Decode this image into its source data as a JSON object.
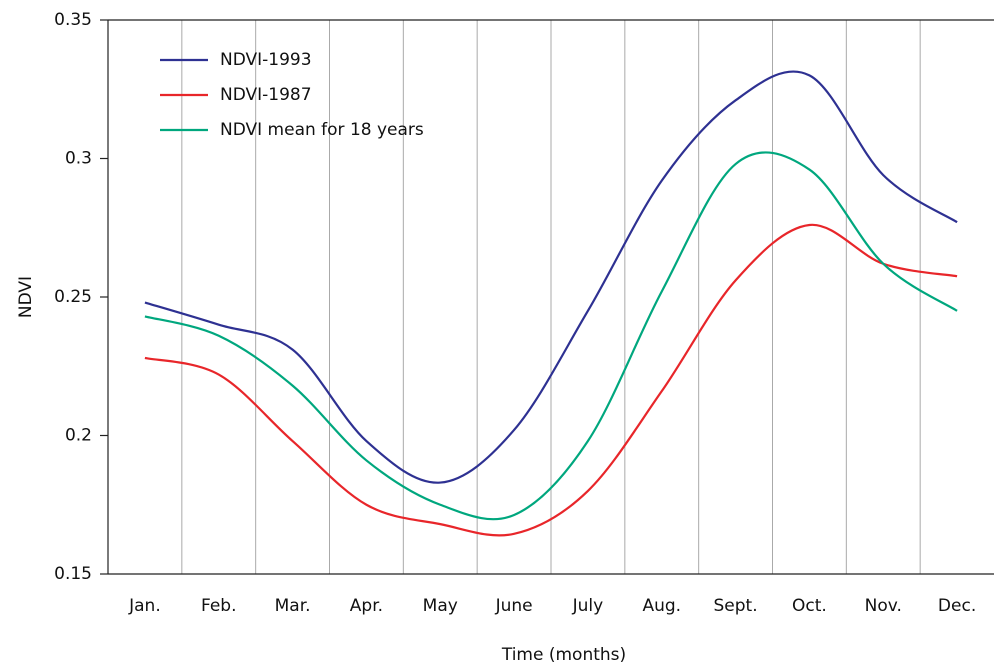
{
  "chart_data": {
    "type": "line",
    "x_label": "Time (months)",
    "y_label": "NDVI",
    "categories": [
      "Jan.",
      "Feb.",
      "Mar.",
      "Apr.",
      "May",
      "June",
      "July",
      "Aug.",
      "Sept.",
      "Oct.",
      "Nov.",
      "Dec."
    ],
    "series": [
      {
        "name": "NDVI-1993",
        "color": "#2e3192",
        "values": [
          0.248,
          0.24,
          0.231,
          0.198,
          0.183,
          0.202,
          0.245,
          0.292,
          0.321,
          0.33,
          0.294,
          0.277
        ]
      },
      {
        "name": "NDVI-1987",
        "color": "#e8262a",
        "values": [
          0.228,
          0.222,
          0.198,
          0.175,
          0.168,
          0.1645,
          0.18,
          0.216,
          0.256,
          0.276,
          0.262,
          0.2575
        ]
      },
      {
        "name": "NDVI mean for 18 years",
        "color": "#00a77e",
        "values": [
          0.243,
          0.236,
          0.218,
          0.191,
          0.175,
          0.1713,
          0.198,
          0.252,
          0.298,
          0.296,
          0.262,
          0.245
        ]
      }
    ],
    "ylim": [
      0.15,
      0.35
    ],
    "yticks": [
      0.15,
      0.2,
      0.25,
      0.3,
      0.35
    ],
    "legend": "upper left"
  }
}
